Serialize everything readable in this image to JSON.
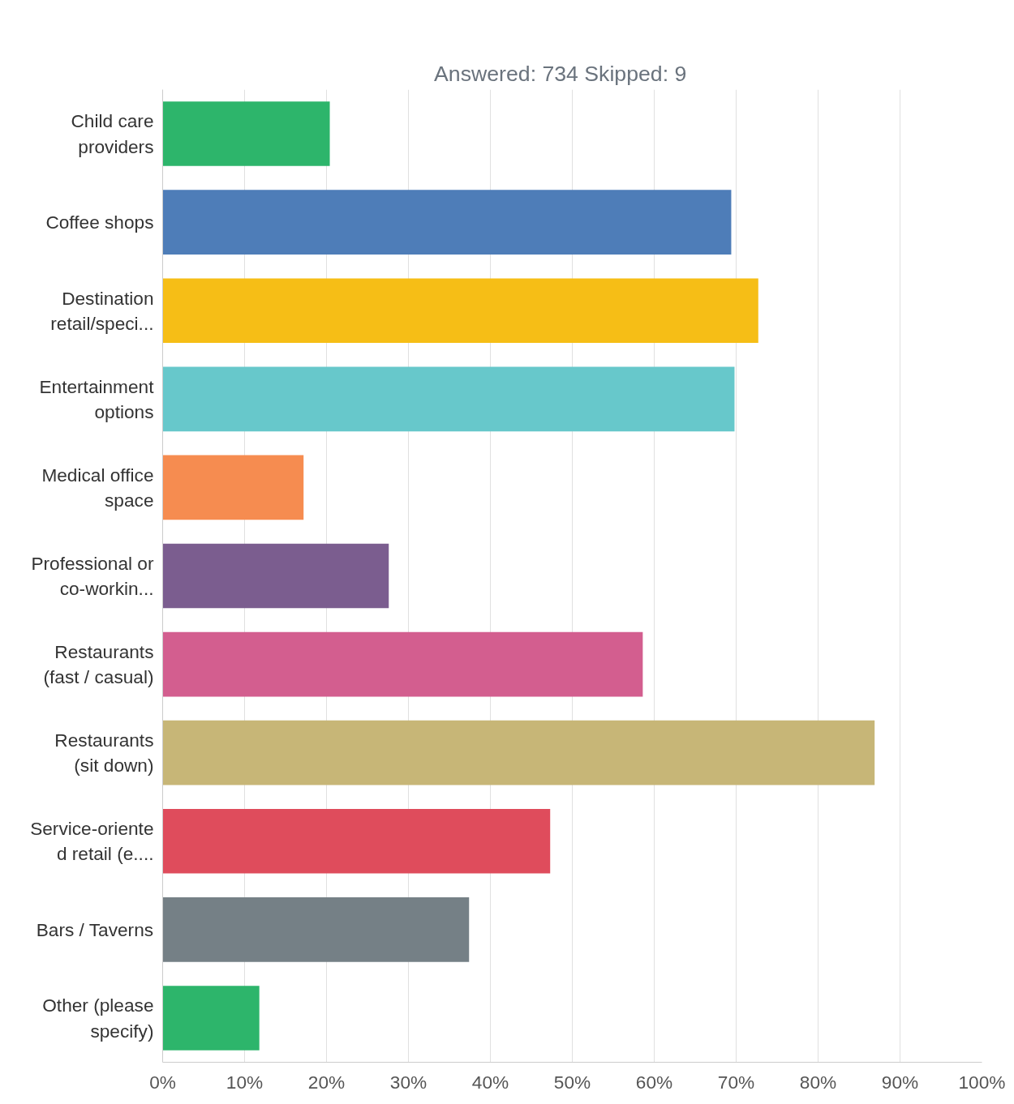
{
  "chart_data": {
    "type": "bar",
    "orientation": "horizontal",
    "title": "Answered: 734     Skipped: 9",
    "categories": [
      "Child care providers",
      "Coffee shops",
      "Destination retail/speci...",
      "Entertainment options",
      "Medical office space",
      "Professional or co-workin...",
      "Restaurants (fast / casual)",
      "Restaurants (sit down)",
      "Service-oriented retail (e....",
      "Bars / Taverns",
      "Other (please specify)"
    ],
    "values": [
      20.4,
      69.4,
      72.7,
      69.8,
      17.2,
      27.6,
      58.6,
      86.9,
      47.3,
      37.4,
      11.8
    ],
    "colors": [
      "#2db56b",
      "#4e7db8",
      "#f6be16",
      "#67c8cb",
      "#f68c50",
      "#7b5d8f",
      "#d35e8f",
      "#c7b677",
      "#df4c5c",
      "#758086",
      "#2db56b"
    ],
    "xlim": [
      0,
      100
    ],
    "xticks": [
      {
        "value": 0,
        "label": "0%"
      },
      {
        "value": 10,
        "label": "10%"
      },
      {
        "value": 20,
        "label": "20%"
      },
      {
        "value": 30,
        "label": "30%"
      },
      {
        "value": 40,
        "label": "40%"
      },
      {
        "value": 50,
        "label": "50%"
      },
      {
        "value": 60,
        "label": "60%"
      },
      {
        "value": 70,
        "label": "70%"
      },
      {
        "value": 80,
        "label": "80%"
      },
      {
        "value": 90,
        "label": "90%"
      },
      {
        "value": 100,
        "label": "100%"
      }
    ],
    "grid": "x"
  }
}
